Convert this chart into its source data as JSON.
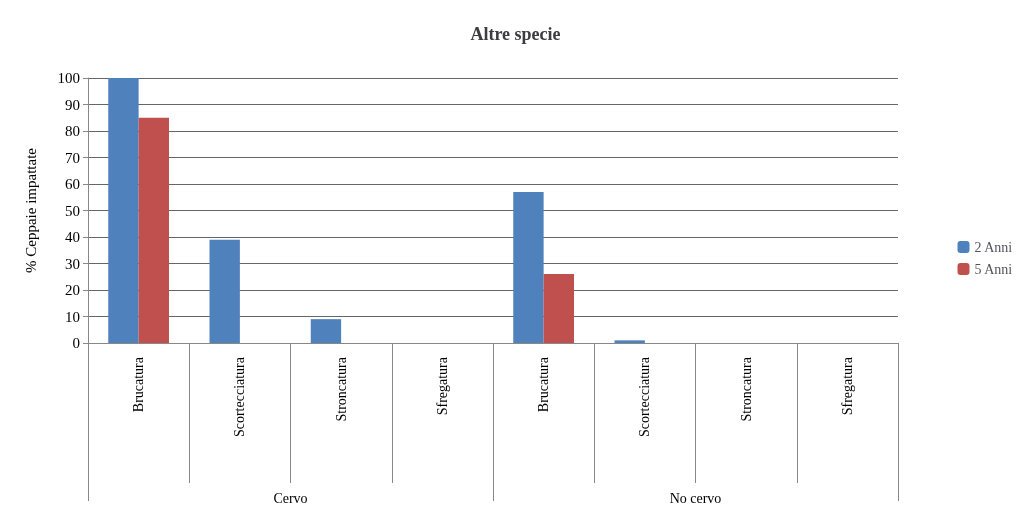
{
  "chart_data": {
    "type": "bar",
    "title": "Altre specie",
    "ylabel": "% Ceppaie impattate",
    "categories": [
      "Brucatura",
      "Scortecciatura",
      "Stroncatura",
      "Sfregatura",
      "Brucatura",
      "Scortecciatura",
      "Stroncatura",
      "Sfregatura"
    ],
    "annotations": [
      "Cervo",
      "No cervo"
    ],
    "series": [
      {
        "name": "2 Anni",
        "color": "#4f81bd",
        "values": [
          100,
          39,
          9,
          0,
          57,
          1,
          0,
          0
        ]
      },
      {
        "name": "5 Anni",
        "color": "#c0504d",
        "values": [
          85,
          0,
          0,
          0,
          26,
          0,
          0,
          0
        ]
      }
    ],
    "ylim": [
      0,
      100
    ],
    "yticks": [
      0,
      10,
      20,
      30,
      40,
      50,
      60,
      70,
      80,
      90,
      100
    ],
    "grid": "y",
    "legend": "right"
  }
}
